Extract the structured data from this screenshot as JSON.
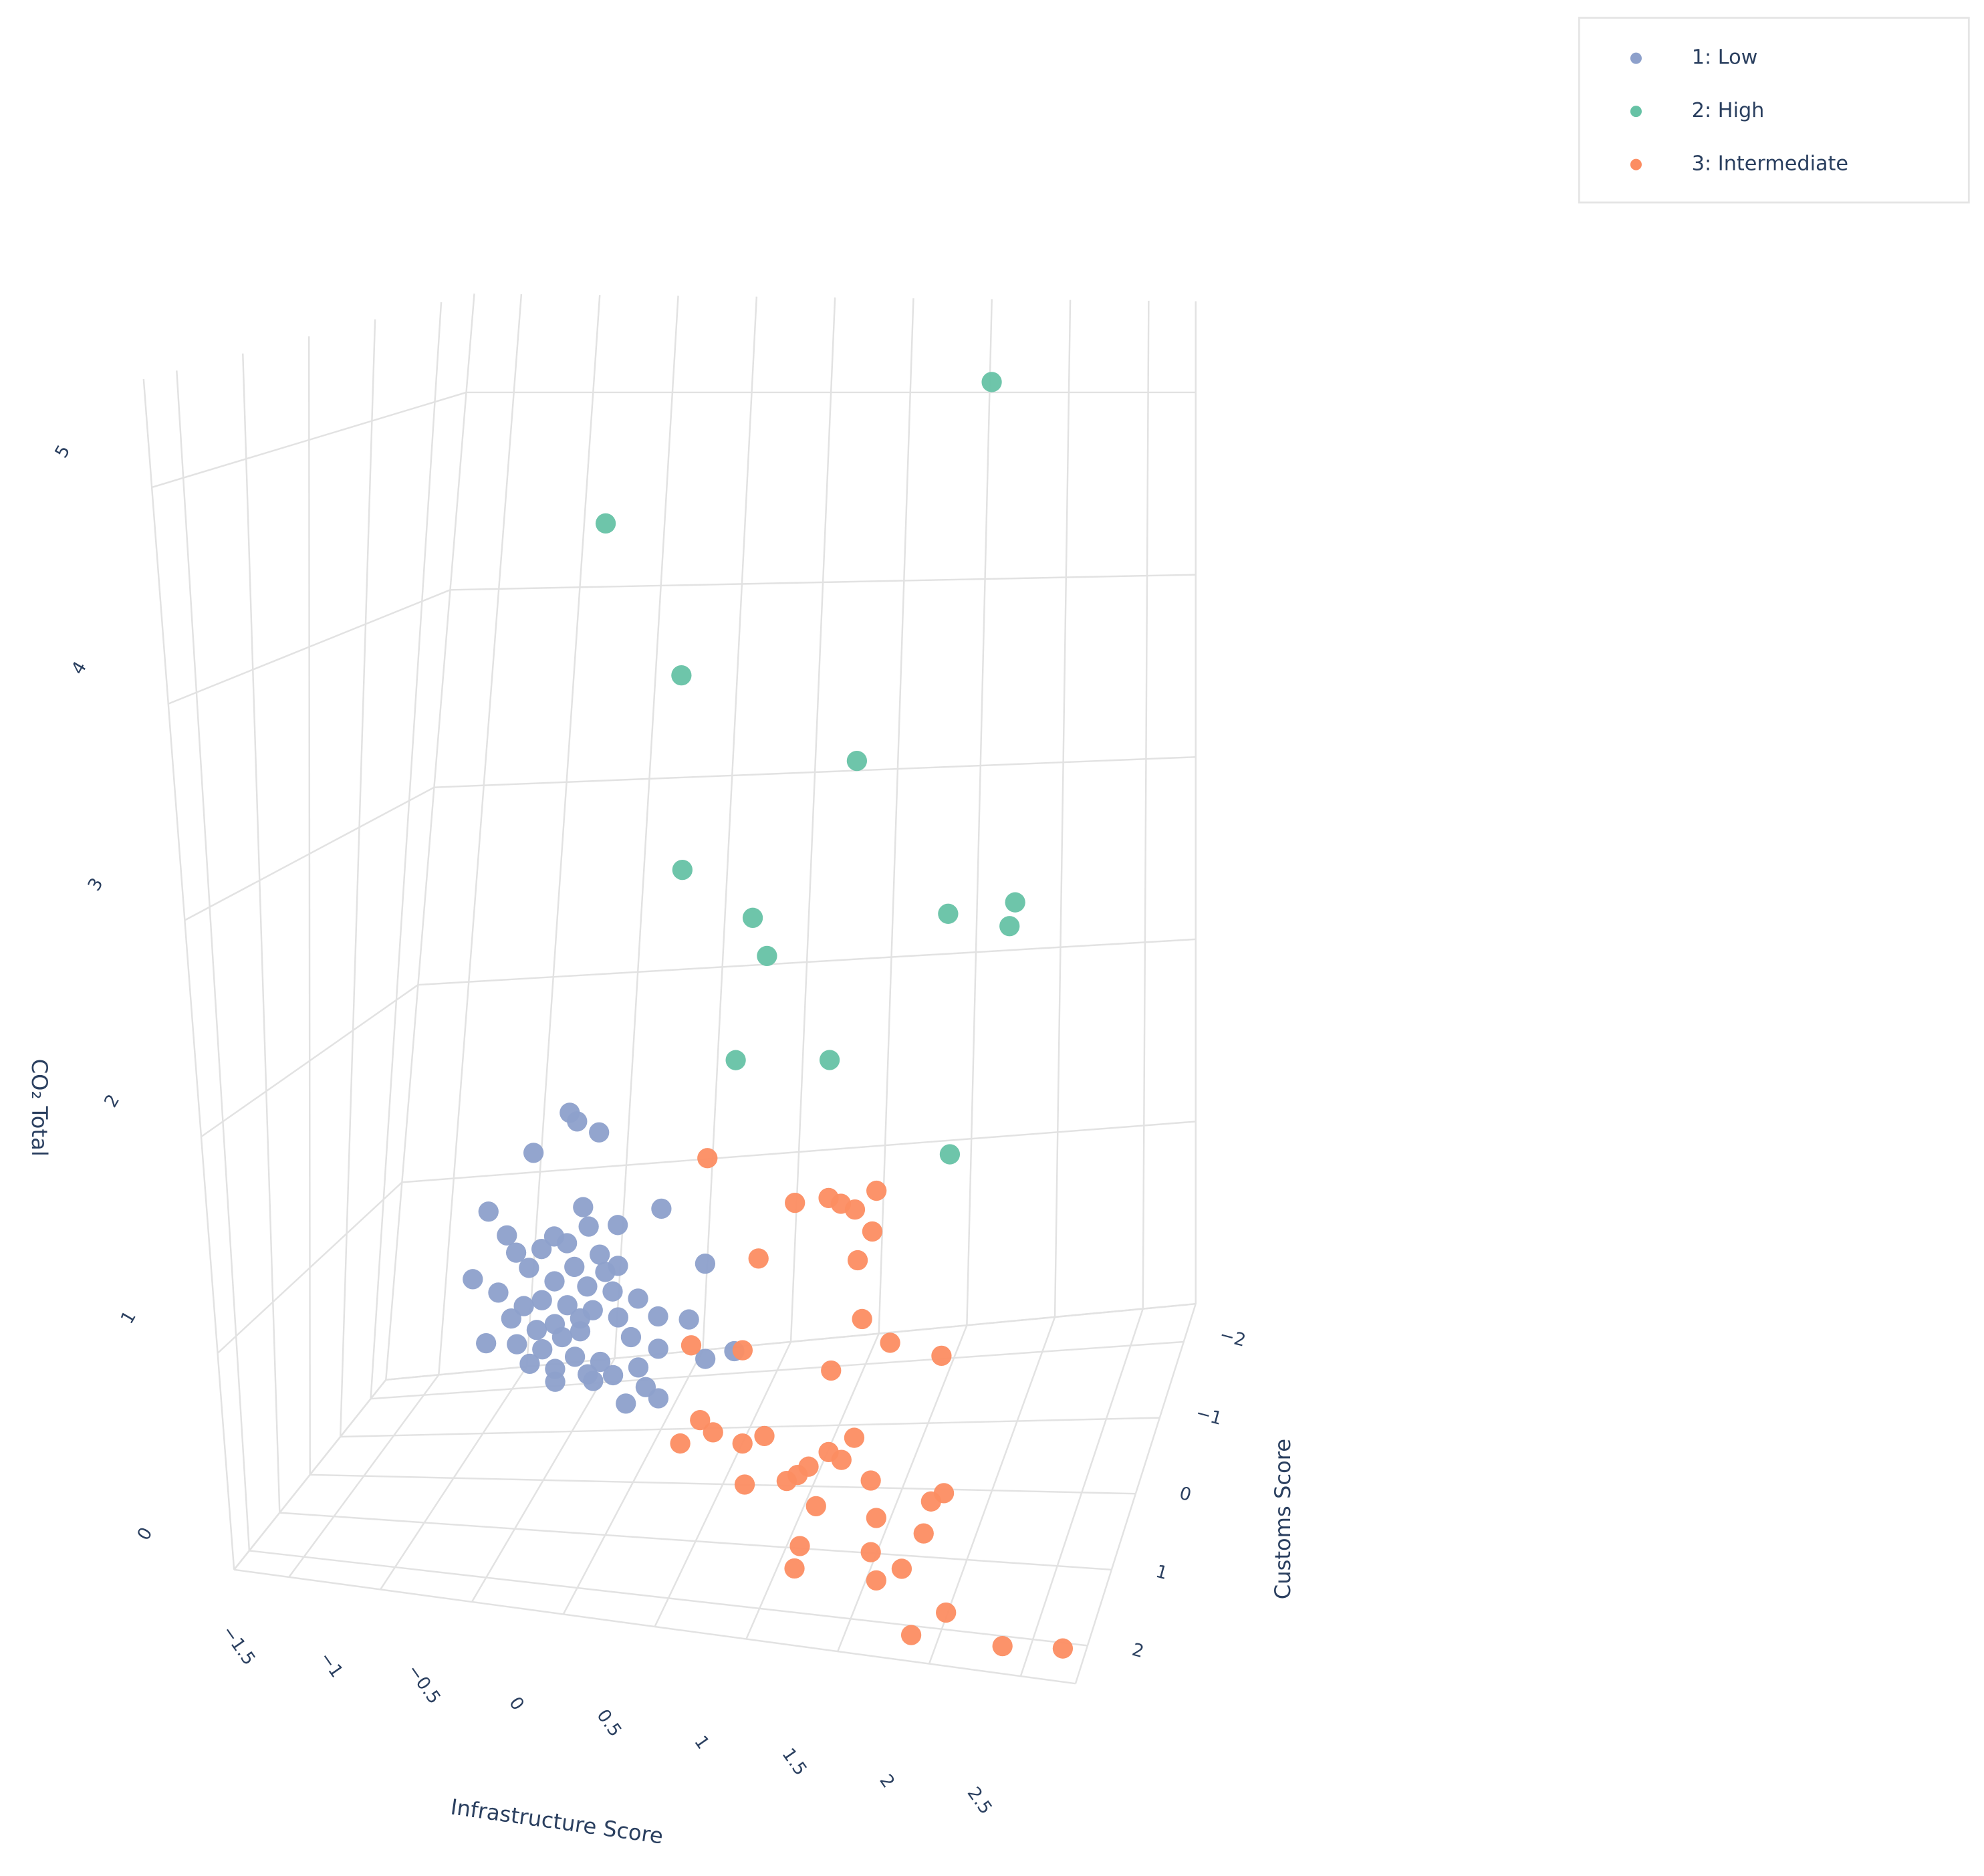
{
  "chart_data": {
    "type": "scatter3d",
    "x_label": "Infrastructure Score",
    "y_label": "Customs Score",
    "z_label": "CO₂ Total",
    "xlim": [
      -1.8,
      2.8
    ],
    "ylim": [
      -2.5,
      2.5
    ],
    "zlim": [
      0,
      5.5
    ],
    "xticks": [
      {
        "value": -1.5,
        "label": "−1.5"
      },
      {
        "value": -1,
        "label": "−1"
      },
      {
        "value": -0.5,
        "label": "−0.5"
      },
      0,
      0.5,
      1,
      1.5,
      2,
      2.5
    ],
    "yticks": [
      {
        "value": -2,
        "label": "−2"
      },
      {
        "value": -1,
        "label": "−1"
      },
      0,
      1,
      2
    ],
    "zticks": [
      0,
      1,
      2,
      3,
      4,
      5
    ],
    "legend": "top-right",
    "series": [
      {
        "name": "1: Low",
        "color": "#8da0cb",
        "x": [
          -0.26,
          -0.22,
          -0.1,
          -0.46,
          0.24,
          -0.71,
          -0.19,
          0.0,
          -0.16,
          -0.61,
          -0.35,
          -0.28,
          -0.56,
          -0.42,
          -0.1,
          0.0,
          -0.24,
          -0.49,
          -0.8,
          -0.66,
          -0.35,
          -0.17,
          -0.03,
          0.11,
          -0.42,
          -0.28,
          -0.14,
          -0.52,
          0.0,
          0.22,
          0.39,
          -0.35,
          -0.21,
          0.07,
          -0.73,
          -0.56,
          -0.42,
          -0.24,
          -0.1,
          0.22,
          -0.35,
          -0.17,
          -0.49,
          -0.03,
          0.11,
          0.04,
          0.22,
          0.15,
          0.48,
          0.48,
          0.64,
          -0.35,
          -0.14,
          -0.59,
          -0.21,
          -0.07,
          -0.45,
          -0.31
        ],
        "y": [
          0.5,
          0.5,
          0.5,
          0.5,
          0.5,
          0.5,
          0.5,
          0.5,
          0.5,
          0.5,
          0.5,
          0.5,
          0.5,
          0.5,
          0.5,
          0.5,
          0.5,
          0.5,
          0.5,
          0.5,
          0.5,
          0.5,
          0.5,
          0.5,
          0.5,
          0.5,
          0.5,
          0.5,
          0.5,
          0.5,
          0.5,
          0.5,
          0.5,
          0.5,
          0.5,
          0.5,
          0.5,
          0.5,
          0.5,
          0.5,
          0.5,
          0.5,
          0.5,
          0.5,
          0.5,
          0.5,
          0.5,
          0.5,
          0.5,
          0.5,
          0.5,
          0.5,
          0.5,
          0.5,
          0.5,
          0.5,
          0.5,
          0.5
        ],
        "z": [
          1.84,
          1.8,
          1.75,
          1.65,
          1.4,
          1.37,
          1.4,
          1.32,
          1.31,
          1.26,
          1.26,
          1.23,
          1.18,
          1.2,
          1.18,
          1.13,
          1.12,
          1.11,
          1.05,
          0.99,
          1.05,
          1.03,
          1.01,
          0.98,
          0.96,
          0.94,
          0.92,
          0.93,
          0.89,
          0.9,
          0.89,
          0.85,
          0.82,
          0.8,
          0.75,
          0.75,
          0.73,
          0.7,
          0.68,
          0.75,
          0.64,
          0.62,
          0.66,
          0.62,
          0.66,
          0.49,
          0.52,
          0.57,
          1.15,
          0.71,
          0.75,
          0.58,
          0.59,
          0.87,
          0.88,
          1.1,
          0.82,
          0.79
        ]
      },
      {
        "name": "2: High",
        "color": "#66c2a5",
        "x": [
          1.7,
          -0.17,
          0.25,
          1.22,
          0.26,
          0.65,
          0.73,
          1.73,
          2.1,
          2.07,
          0.56,
          1.08,
          1.75
        ],
        "y": [
          -1.5,
          0,
          0,
          0,
          0,
          0,
          0,
          0,
          0,
          0,
          0,
          0,
          0
        ],
        "z": [
          5.1,
          4.55,
          3.82,
          3.4,
          2.9,
          2.67,
          2.49,
          2.68,
          2.73,
          2.62,
          2.0,
          2.0,
          1.56
        ]
      },
      {
        "name": "3: Intermediate",
        "color": "#fc8d62",
        "x": [
          0.23,
          0.73,
          0.92,
          0.99,
          1.07,
          1.19,
          1.17,
          1.09,
          0.53,
          1.12,
          1.28,
          1.57,
          0.95,
          0.45,
          0.16,
          0.61,
          0.5,
          0.68,
          0.84,
          0.96,
          1.45,
          1.31,
          1.2,
          1.14,
          1.08,
          0.85,
          1.38,
          1.54,
          1.94,
          1.87,
          1.24,
          1.57,
          1.83,
          1.15,
          1.54,
          1.71,
          1.12,
          1.57,
          2.05,
          1.86,
          2.36,
          2.69
        ],
        "y": [
          -1,
          -1,
          -1,
          -1,
          -1,
          -1,
          -1,
          -1,
          -1,
          -1,
          -1,
          -1,
          -1,
          -1,
          -1,
          1.5,
          1.5,
          1.5,
          1.5,
          1.5,
          1.5,
          1.5,
          1.5,
          1.5,
          1.5,
          1.5,
          1.5,
          1.5,
          1.5,
          1.5,
          1.5,
          1.5,
          1.5,
          1.5,
          1.5,
          1.5,
          1.5,
          1.5,
          2.2,
          2.2,
          2.2,
          2.2
        ],
        "z": [
          1.33,
          1.1,
          1.12,
          1.09,
          1.06,
          1.15,
          0.95,
          0.81,
          0.83,
          0.52,
          0.4,
          0.33,
          0.27,
          0.38,
          0.41,
          0.67,
          0.56,
          0.62,
          0.58,
          0.62,
          0.64,
          0.57,
          0.5,
          0.46,
          0.43,
          0.4,
          0.54,
          0.46,
          0.43,
          0.39,
          0.33,
          0.3,
          0.25,
          0.15,
          0.15,
          0.09,
          0.05,
          0.03,
          0.13,
          0.02,
          0.02,
          0.04
        ]
      }
    ]
  }
}
